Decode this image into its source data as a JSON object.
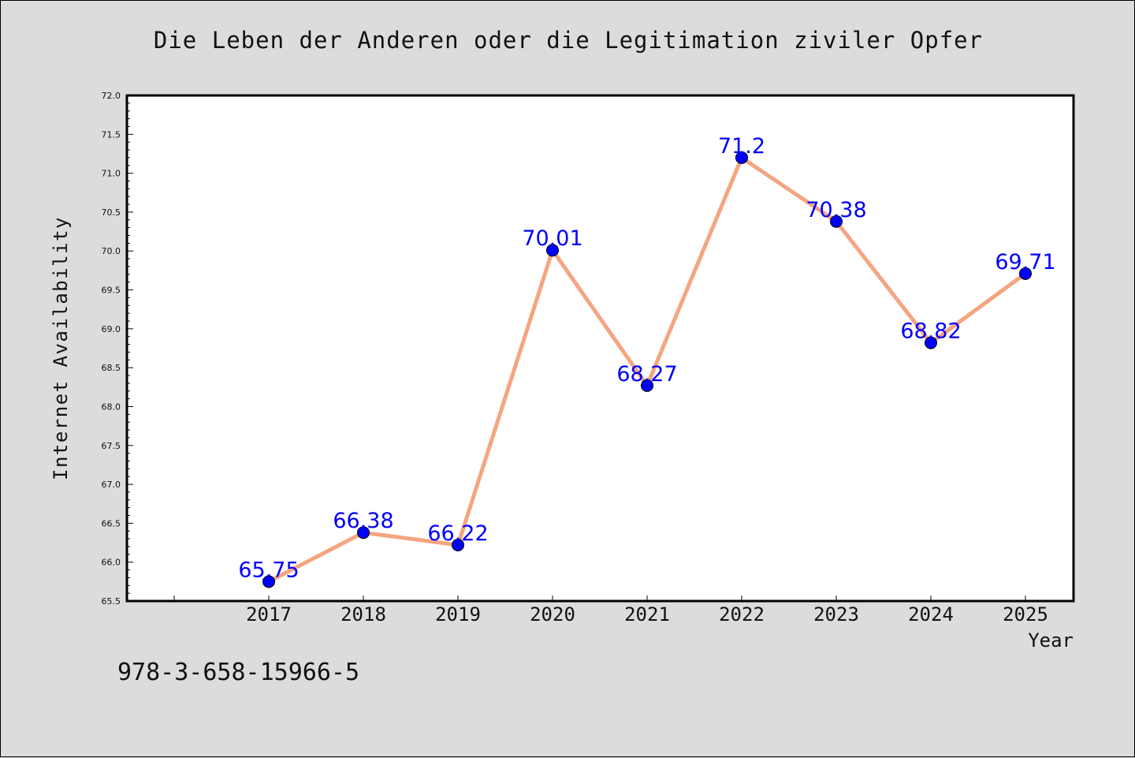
{
  "chart_data": {
    "type": "line",
    "title": "Die Leben der Anderen oder die Legitimation ziviler Opfer",
    "xlabel": "Year",
    "ylabel": "Internet Availability",
    "x": [
      "2017",
      "2018",
      "2019",
      "2020",
      "2021",
      "2022",
      "2023",
      "2024",
      "2025"
    ],
    "series": [
      {
        "values": [
          65.75,
          66.38,
          66.22,
          70.01,
          68.27,
          71.2,
          70.38,
          68.82,
          69.71
        ],
        "labels": [
          "65.75",
          "66.38",
          "66.22",
          "70.01",
          "68.27",
          "71.2",
          "70.38",
          "68.82",
          "69.71"
        ]
      }
    ],
    "ylim": [
      65.5,
      72.0
    ],
    "yticks": [
      "65.5",
      "66.0",
      "66.5",
      "67.0",
      "67.5",
      "68.0",
      "68.5",
      "69.0",
      "69.5",
      "70.0",
      "70.5",
      "71.0",
      "71.5",
      "72.0"
    ],
    "grid": false,
    "colors": {
      "line": "#f4a582",
      "marker": "#0000ff",
      "label": "#0000ff",
      "background": "#dcdcdc",
      "plot_bg": "#ffffff"
    }
  },
  "footer": {
    "isbn": "978-3-658-15966-5"
  }
}
